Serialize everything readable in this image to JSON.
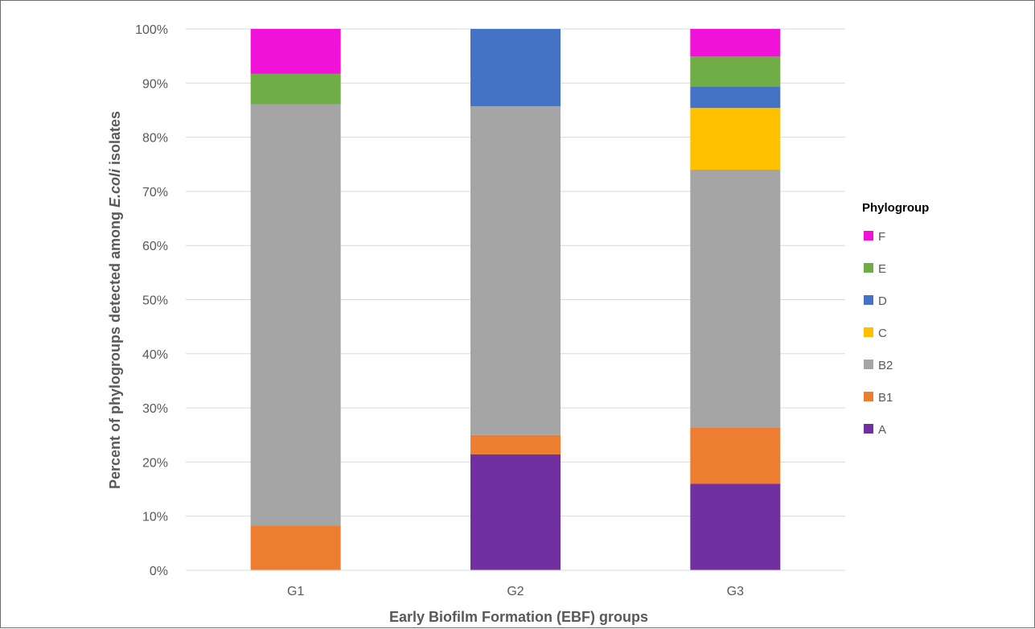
{
  "chart_data": {
    "type": "bar",
    "stacked": true,
    "percent_stacked": true,
    "title": "",
    "xlabel": "Early Biofilm Formation (EBF) groups",
    "ylabel": {
      "pre": "Percent of phylogroups detected among ",
      "italic": "E.coli",
      "post": " isolates"
    },
    "categories": [
      "G1",
      "G2",
      "G3"
    ],
    "ylim": [
      0,
      100
    ],
    "yticks": [
      0,
      10,
      20,
      30,
      40,
      50,
      60,
      70,
      80,
      90,
      100
    ],
    "ytick_labels": [
      "0%",
      "10%",
      "20%",
      "30%",
      "40%",
      "50%",
      "60%",
      "70%",
      "80%",
      "90%",
      "100%"
    ],
    "grid": true,
    "legend_title": "Phylogroup",
    "legend_position": "right",
    "series": [
      {
        "name": "A",
        "color": "#7030A0",
        "values": [
          0,
          21.4,
          16.0
        ]
      },
      {
        "name": "B1",
        "color": "#ED7D31",
        "values": [
          8.3,
          3.6,
          10.4
        ]
      },
      {
        "name": "B2",
        "color": "#A5A5A5",
        "values": [
          77.8,
          60.7,
          47.6
        ]
      },
      {
        "name": "C",
        "color": "#FFC000",
        "values": [
          0,
          0,
          11.4
        ]
      },
      {
        "name": "D",
        "color": "#4472C4",
        "values": [
          0,
          14.3,
          3.9
        ]
      },
      {
        "name": "E",
        "color": "#70AD47",
        "values": [
          5.6,
          0,
          5.6
        ]
      },
      {
        "name": "F",
        "color": "#F012D8",
        "values": [
          8.3,
          0,
          5.1
        ]
      }
    ]
  }
}
